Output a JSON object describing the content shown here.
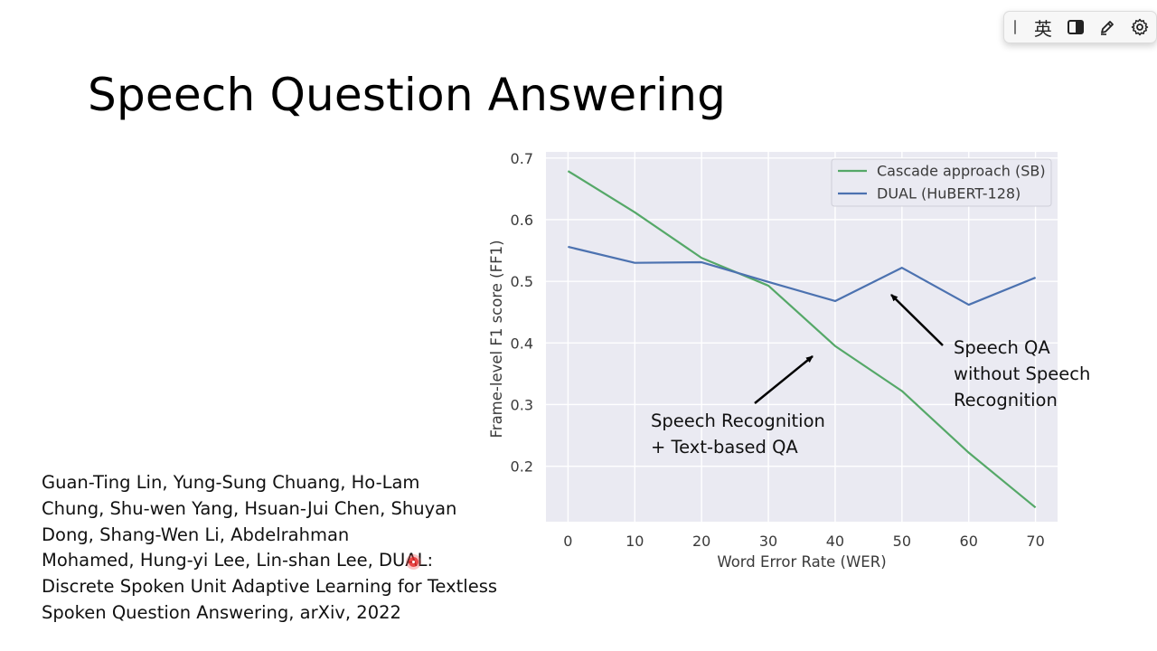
{
  "slide": {
    "title": "Speech Question Answering",
    "citation_lines": [
      "Guan-Ting Lin, Yung-Sung Chuang, Ho-Lam",
      "Chung, Shu-wen Yang, Hsuan-Jui Chen, Shuyan",
      "Dong, Shang-Wen Li, Abdelrahman",
      "Mohamed, Hung-yi Lee, Lin-shan Lee, DUAL:",
      "Discrete Spoken Unit Adaptive Learning for Textless",
      "Spoken Question Answering, arXiv, 2022"
    ]
  },
  "annotations": {
    "cascade_lines": [
      "Speech Recognition",
      "+ Text-based QA"
    ],
    "dual_lines": [
      "Speech QA",
      "without Speech",
      "Recognition"
    ]
  },
  "ime_toolbar": {
    "language_label": "英",
    "icons": [
      "layout-icon",
      "pen-icon",
      "gear-icon"
    ]
  },
  "chart_data": {
    "type": "line",
    "title": "",
    "xlabel": "Word Error Rate (WER)",
    "ylabel": "Frame-level F1 score (FF1)",
    "x": [
      0,
      10,
      20,
      30,
      40,
      50,
      60,
      70
    ],
    "xticks": [
      0,
      10,
      20,
      30,
      40,
      50,
      60,
      70
    ],
    "yticks": [
      0.2,
      0.3,
      0.4,
      0.5,
      0.6,
      0.7
    ],
    "xlim": [
      -3.3,
      73.3
    ],
    "ylim": [
      0.11,
      0.71
    ],
    "grid": true,
    "legend_position": "top-right",
    "series": [
      {
        "name": "Cascade approach (SB)",
        "color": "#55a868",
        "values": [
          0.679,
          0.612,
          0.538,
          0.493,
          0.395,
          0.322,
          0.222,
          0.133
        ]
      },
      {
        "name": "DUAL (HuBERT-128)",
        "color": "#4c72b0",
        "values": [
          0.556,
          0.53,
          0.531,
          0.499,
          0.468,
          0.522,
          0.462,
          0.506
        ]
      }
    ]
  }
}
